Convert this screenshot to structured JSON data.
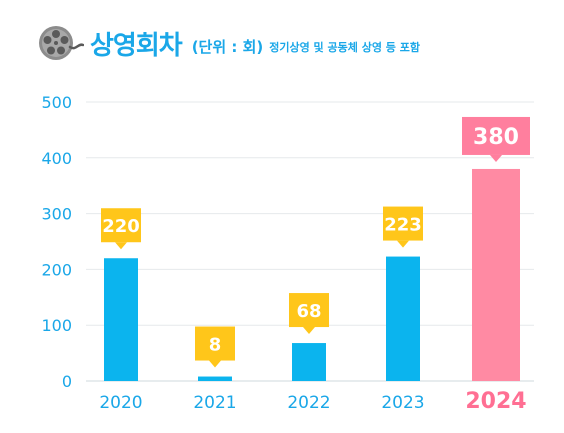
{
  "header": {
    "icon": "film-reel-icon",
    "title": "상영회차",
    "unit": "(단위 : 회)",
    "note": "정기상영 및 공동체 상영 등 포함"
  },
  "colors": {
    "accent": "#1aa7e8",
    "bar": "#0bb4ee",
    "highlight_bar": "#ff8aa3",
    "label_box": "#ffc61a",
    "highlight_label_box": "#ff7f9e",
    "highlight_text": "#ff6f93"
  },
  "chart_data": {
    "type": "bar",
    "categories": [
      "2020",
      "2021",
      "2022",
      "2023",
      "2024"
    ],
    "values": [
      220,
      8,
      68,
      223,
      380
    ],
    "data_labels": [
      "220",
      "8",
      "68",
      "223",
      "380"
    ],
    "y_ticks": [
      "0",
      "100",
      "200",
      "300",
      "400",
      "500"
    ],
    "ylim": [
      0,
      500
    ],
    "highlight_category": "2024",
    "grid": true
  }
}
